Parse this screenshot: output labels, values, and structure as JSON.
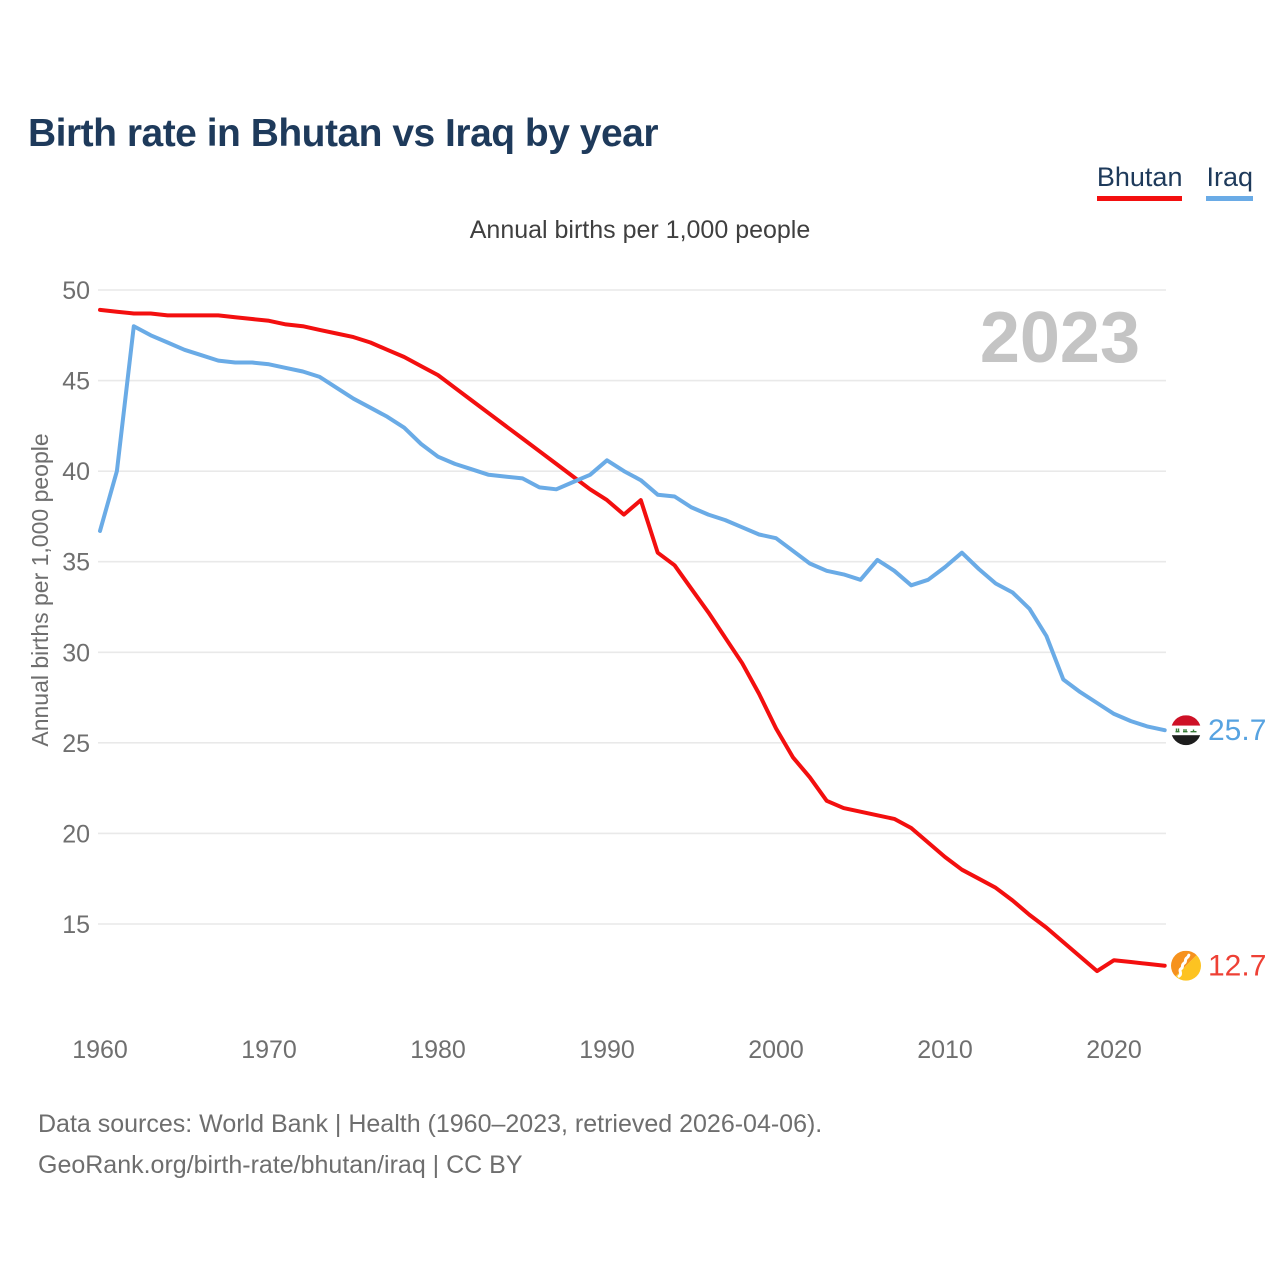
{
  "page": {
    "title": "Birth rate in Bhutan vs Iraq by year",
    "subtitle": "Annual births per 1,000 people",
    "watermark": "2023",
    "footer_line1": "Data sources: World Bank | Health (1960–2023, retrieved 2026-04-06).",
    "footer_line2": "GeoRank.org/birth-rate/bhutan/iraq | CC BY"
  },
  "colors": {
    "title_navy": "#1E3A5B",
    "bhutan_red": "#F30F0F",
    "iraq_blue": "#6AABE6",
    "bhutan_label_red": "#EE4035",
    "iraq_label_blue": "#57A3E1",
    "axis_gray": "#6F6F6F",
    "watermark_gray": "#C4C4C4",
    "gridline_gray": "#E9E9E9"
  },
  "chart_data": {
    "type": "line",
    "title": "Birth rate in Bhutan vs Iraq by year",
    "subtitle": "Annual births per 1,000 people",
    "ylabel": "Annual births per 1,000 people",
    "xlabel": "",
    "grid": "horizontal",
    "legend_position": "top-right",
    "watermark": "2023",
    "x_range": [
      1960,
      2023
    ],
    "ylim": [
      15,
      50
    ],
    "yticks": [
      50,
      45,
      40,
      35,
      30,
      25,
      20,
      15
    ],
    "xticks": [
      1960,
      1970,
      1980,
      1990,
      2000,
      2010,
      2020
    ],
    "x": [
      1960,
      1961,
      1962,
      1963,
      1964,
      1965,
      1966,
      1967,
      1968,
      1969,
      1970,
      1971,
      1972,
      1973,
      1974,
      1975,
      1976,
      1977,
      1978,
      1979,
      1980,
      1981,
      1982,
      1983,
      1984,
      1985,
      1986,
      1987,
      1988,
      1989,
      1990,
      1991,
      1992,
      1993,
      1994,
      1995,
      1996,
      1997,
      1998,
      1999,
      2000,
      2001,
      2002,
      2003,
      2004,
      2005,
      2006,
      2007,
      2008,
      2009,
      2010,
      2011,
      2012,
      2013,
      2014,
      2015,
      2016,
      2017,
      2018,
      2019,
      2020,
      2021,
      2022,
      2023
    ],
    "series": [
      {
        "name": "Bhutan",
        "color": "#F30F0F",
        "label_color": "#EE4035",
        "end_label": "12.7",
        "values": [
          48.9,
          48.8,
          48.7,
          48.7,
          48.6,
          48.6,
          48.6,
          48.6,
          48.5,
          48.4,
          48.3,
          48.1,
          48.0,
          47.8,
          47.6,
          47.4,
          47.1,
          46.7,
          46.3,
          45.8,
          45.3,
          44.6,
          43.9,
          43.2,
          42.5,
          41.8,
          41.1,
          40.4,
          39.7,
          39.0,
          38.4,
          37.6,
          38.4,
          35.5,
          34.8,
          33.5,
          32.2,
          30.8,
          29.4,
          27.7,
          25.8,
          24.2,
          23.1,
          21.8,
          21.4,
          21.2,
          21.0,
          20.8,
          20.3,
          19.5,
          18.7,
          18.0,
          17.5,
          17.0,
          16.3,
          15.5,
          14.8,
          14.0,
          13.2,
          12.4,
          13.0,
          12.9,
          12.8,
          12.7
        ]
      },
      {
        "name": "Iraq",
        "color": "#6AABE6",
        "label_color": "#57A3E1",
        "end_label": "25.7",
        "values": [
          36.7,
          40.0,
          48.0,
          47.5,
          47.1,
          46.7,
          46.4,
          46.1,
          46.0,
          46.0,
          45.9,
          45.7,
          45.5,
          45.2,
          44.6,
          44.0,
          43.5,
          43.0,
          42.4,
          41.5,
          40.8,
          40.4,
          40.1,
          39.8,
          39.7,
          39.6,
          39.1,
          39.0,
          39.4,
          39.8,
          40.6,
          40.0,
          39.5,
          38.7,
          38.6,
          38.0,
          37.6,
          37.3,
          36.9,
          36.5,
          36.3,
          35.6,
          34.9,
          34.5,
          34.3,
          34.0,
          35.1,
          34.5,
          33.7,
          34.0,
          34.7,
          35.5,
          34.6,
          33.8,
          33.3,
          32.4,
          30.9,
          28.5,
          27.8,
          27.2,
          26.6,
          26.2,
          25.9,
          25.7
        ]
      }
    ]
  }
}
